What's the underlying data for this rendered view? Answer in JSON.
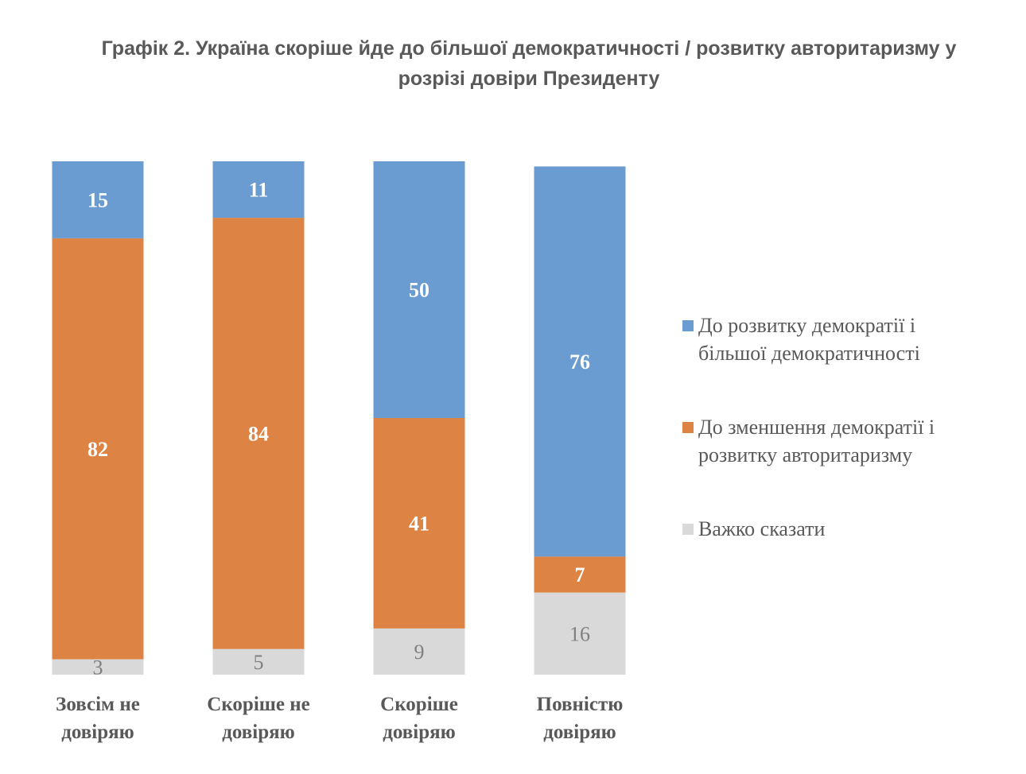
{
  "title": {
    "line1": "Графік 2. Україна скоріше йде до більшої демократичності / розвитку авторитаризму у",
    "line2": "розрізі довіри Президенту"
  },
  "chart_data": {
    "type": "bar",
    "stacked": true,
    "ylim": [
      0,
      100
    ],
    "legend_position": "right",
    "categories": [
      [
        "Зовсім не",
        "довіряю"
      ],
      [
        "Скоріше не",
        "довіряю"
      ],
      [
        "Скоріше",
        "довіряю"
      ],
      [
        "Повністю",
        "довіряю"
      ]
    ],
    "series": [
      {
        "name_lines": [
          "До розвитку демократії і",
          "більшої демократичності"
        ],
        "color": "#6a9bd1",
        "label_style": "bold-white",
        "values": [
          15,
          11,
          50,
          76
        ]
      },
      {
        "name_lines": [
          "До зменшення демократії і",
          "розвитку авторитаризму"
        ],
        "color": "#dd8444",
        "label_style": "bold-white",
        "values": [
          82,
          84,
          41,
          7
        ]
      },
      {
        "name_lines": [
          "Важко сказати"
        ],
        "color": "#d9d9d9",
        "label_style": "light-grey",
        "values": [
          3,
          5,
          9,
          16
        ]
      }
    ]
  }
}
